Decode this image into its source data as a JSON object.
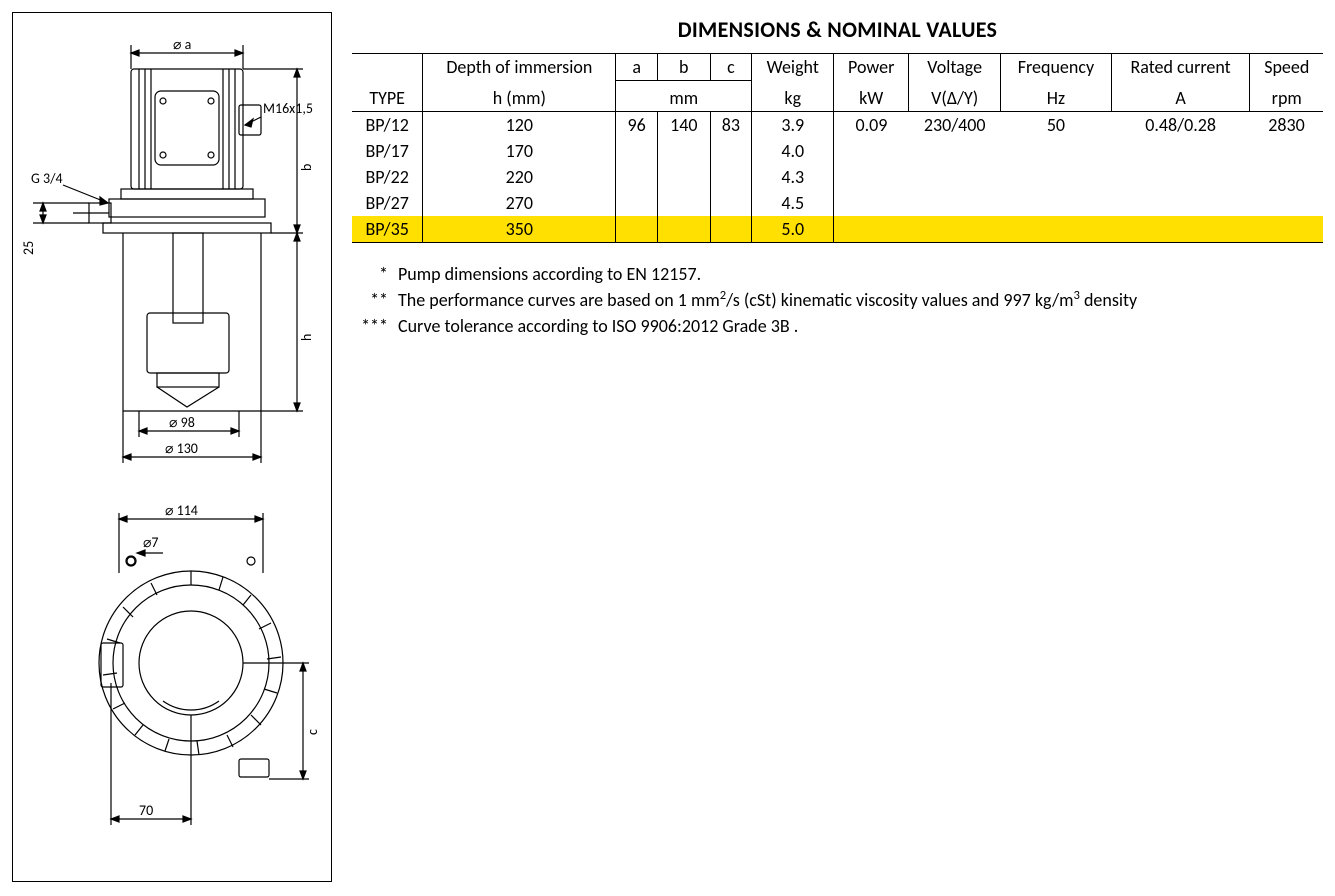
{
  "title": "DIMENSIONS & NOMINAL VALUES",
  "colors": {
    "text": "#000000",
    "background": "#ffffff",
    "border": "#000000",
    "highlight": "#ffe000",
    "drawing_stroke": "#000000",
    "drawing_fill": "#ffffff"
  },
  "typography": {
    "family": "Calibri, Arial, sans-serif",
    "body_size_pt": 13,
    "title_size_pt": 16,
    "title_weight": 700
  },
  "table": {
    "header1": {
      "type": "",
      "depth": "Depth of immersion",
      "a": "a",
      "b": "b",
      "c": "c",
      "weight": "Weight",
      "power": "Power",
      "voltage": "Voltage",
      "frequency": "Frequency",
      "rated_current": "Rated current",
      "speed": "Speed"
    },
    "header2": {
      "type": "TYPE",
      "depth": "h (mm)",
      "abc_unit": "mm",
      "weight": "kg",
      "power": "kW",
      "voltage": "V(Δ/Y)",
      "frequency": "Hz",
      "rated_current": "A",
      "speed": "rpm"
    },
    "rows": [
      {
        "type": "BP/12",
        "h": "120",
        "a": "96",
        "b": "140",
        "c": "83",
        "weight": "3.9",
        "power": "0.09",
        "voltage": "230/400",
        "frequency": "50",
        "rated_current": "0.48/0.28",
        "speed": "2830",
        "highlight": false
      },
      {
        "type": "BP/17",
        "h": "170",
        "a": "",
        "b": "",
        "c": "",
        "weight": "4.0",
        "power": "",
        "voltage": "",
        "frequency": "",
        "rated_current": "",
        "speed": "",
        "highlight": false
      },
      {
        "type": "BP/22",
        "h": "220",
        "a": "",
        "b": "",
        "c": "",
        "weight": "4.3",
        "power": "",
        "voltage": "",
        "frequency": "",
        "rated_current": "",
        "speed": "",
        "highlight": false
      },
      {
        "type": "BP/27",
        "h": "270",
        "a": "",
        "b": "",
        "c": "",
        "weight": "4.5",
        "power": "",
        "voltage": "",
        "frequency": "",
        "rated_current": "",
        "speed": "",
        "highlight": false
      },
      {
        "type": "BP/35",
        "h": "350",
        "a": "",
        "b": "",
        "c": "",
        "weight": "5.0",
        "power": "",
        "voltage": "",
        "frequency": "",
        "rated_current": "",
        "speed": "",
        "highlight": true
      }
    ]
  },
  "notes": {
    "n1": {
      "stars": "*",
      "text": "Pump dimensions according to EN 12157."
    },
    "n2": {
      "stars": "**",
      "text_before": "The performance curves are based on 1 mm",
      "sup1": "2",
      "text_mid": "/s (cSt) kinematic viscosity values and 997 kg/m",
      "sup2": "3",
      "text_after": " density"
    },
    "n3": {
      "stars": "***",
      "text": "Curve tolerance according to ISO 9906:2012 Grade 3B ."
    }
  },
  "drawing": {
    "labels": {
      "dia_a": "⌀ a",
      "m16": "M16x1,5",
      "g34": "G 3/4",
      "d25": "25",
      "b": "b",
      "h": "h",
      "d98": "⌀ 98",
      "d130": "⌀ 130",
      "d114": "⌀ 114",
      "d7": "⌀7",
      "dc": "c",
      "d70": "70"
    },
    "stroke_width": 1.2,
    "font_size": 14
  }
}
